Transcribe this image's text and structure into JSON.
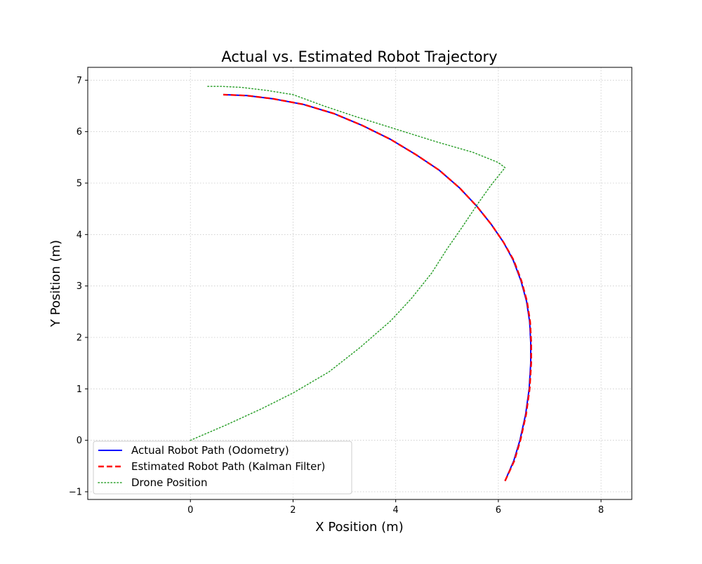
{
  "chart_data": {
    "type": "line",
    "title": "Actual vs. Estimated Robot Trajectory",
    "xlabel": "X Position (m)",
    "ylabel": "Y Position (m)",
    "xlim": [
      -2.0,
      8.6
    ],
    "ylim": [
      -1.15,
      7.25
    ],
    "xticks": [
      0,
      2,
      4,
      6,
      8
    ],
    "yticks": [
      -1,
      0,
      1,
      2,
      3,
      4,
      5,
      6,
      7
    ],
    "grid": true,
    "legend_location": "lower-left",
    "series": [
      {
        "name": "Actual Robot Path (Odometry)",
        "color": "#0000ff",
        "line_style": "solid",
        "x": [
          6.13,
          6.3,
          6.42,
          6.53,
          6.6,
          6.63,
          6.63,
          6.61,
          6.55,
          6.44,
          6.29,
          6.1,
          5.86,
          5.58,
          5.25,
          4.85,
          4.4,
          3.9,
          3.35,
          2.8,
          2.2,
          1.6,
          1.1,
          0.64
        ],
        "y": [
          -0.79,
          -0.4,
          0.0,
          0.5,
          1.0,
          1.5,
          1.9,
          2.3,
          2.7,
          3.1,
          3.5,
          3.85,
          4.2,
          4.55,
          4.9,
          5.25,
          5.55,
          5.85,
          6.12,
          6.35,
          6.53,
          6.64,
          6.7,
          6.72
        ]
      },
      {
        "name": "Estimated Robot Path (Kalman Filter)",
        "color": "#ff0000",
        "line_style": "dashed",
        "x": [
          6.13,
          6.31,
          6.43,
          6.54,
          6.61,
          6.64,
          6.64,
          6.62,
          6.56,
          6.45,
          6.3,
          6.1,
          5.86,
          5.58,
          5.25,
          4.85,
          4.4,
          3.9,
          3.35,
          2.8,
          2.2,
          1.6,
          1.1,
          0.64
        ],
        "y": [
          -0.79,
          -0.4,
          0.0,
          0.5,
          1.0,
          1.5,
          1.9,
          2.3,
          2.7,
          3.1,
          3.5,
          3.85,
          4.2,
          4.55,
          4.9,
          5.25,
          5.55,
          5.85,
          6.12,
          6.35,
          6.53,
          6.64,
          6.7,
          6.72
        ]
      },
      {
        "name": "Drone Position",
        "color": "#2ca02c",
        "line_style": "dotted",
        "x": [
          0.0,
          0.7,
          1.4,
          2.0,
          2.7,
          3.3,
          3.9,
          4.3,
          4.7,
          5.0,
          5.3,
          5.6,
          5.85,
          6.05,
          6.13,
          6.0,
          5.5,
          4.8,
          4.0,
          3.2,
          2.6,
          2.0,
          1.5,
          1.0,
          0.6,
          0.3
        ],
        "y": [
          0.0,
          0.3,
          0.62,
          0.92,
          1.33,
          1.8,
          2.32,
          2.75,
          3.25,
          3.72,
          4.15,
          4.6,
          4.95,
          5.2,
          5.3,
          5.4,
          5.6,
          5.8,
          6.05,
          6.3,
          6.5,
          6.72,
          6.8,
          6.86,
          6.88,
          6.88
        ]
      }
    ]
  }
}
